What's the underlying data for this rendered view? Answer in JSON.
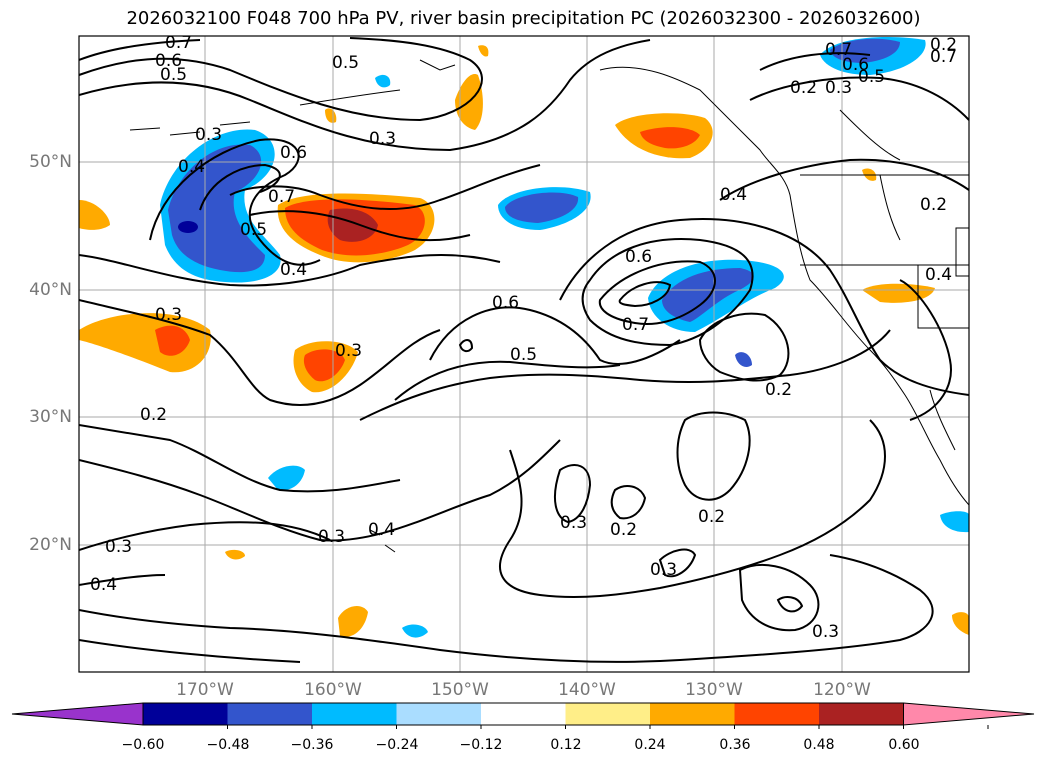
{
  "title": "2026032100 F048 700 hPa PV, river basin precipitation PC (2026032300 - 2026032600)",
  "lat_labels": [
    "50°N",
    "40°N",
    "30°N",
    "20°N"
  ],
  "lon_labels": [
    "170°W",
    "160°W",
    "150°W",
    "140°W",
    "130°W",
    "120°W"
  ],
  "colorbar": {
    "colors": [
      "#9933cc",
      "#000099",
      "#3355cc",
      "#00bbff",
      "#aaddff",
      "#ffffff",
      "#ffee88",
      "#ffaa00",
      "#ff4400",
      "#aa2222",
      "#ff88aa"
    ],
    "ticks": [
      "−0.60",
      "−0.48",
      "−0.36",
      "−0.24",
      "−0.12",
      "0.12",
      "0.24",
      "0.36",
      "0.48",
      "0.60"
    ]
  },
  "contour_labels": [
    "0.7",
    "0.6",
    "0.5",
    "0.5",
    "0.3",
    "0.4",
    "0.6",
    "0.7",
    "0.5",
    "0.4",
    "0.3",
    "0.6",
    "0.5",
    "0.6",
    "0.7",
    "0.4",
    "0.2",
    "0.3",
    "0.2",
    "0.3",
    "0.4",
    "0.3",
    "0.4",
    "0.3",
    "0.2",
    "0.2",
    "0.3",
    "0.3",
    "0.2",
    "0.3",
    "0.7",
    "0.6",
    "0.5",
    "0.2",
    "0.3",
    "0.4",
    "0.2",
    "0.7"
  ]
}
